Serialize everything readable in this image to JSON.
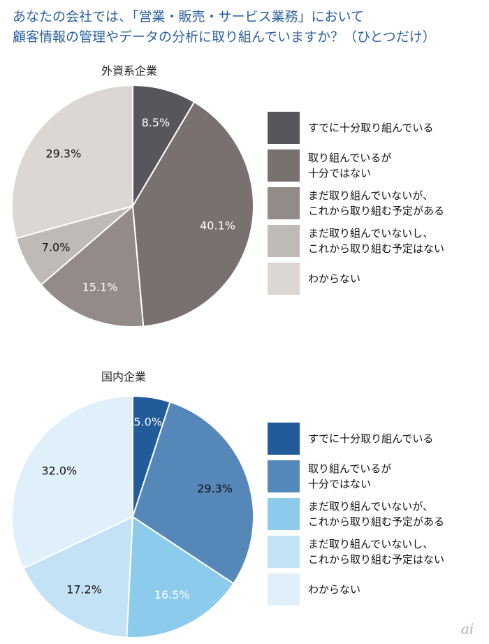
{
  "title": {
    "line1": "あなたの会社では、「営業・販売・サービス業務」において",
    "line2": "顧客情報の管理やデータの分析に取り組んでいますか？（ひとつだけ）"
  },
  "chart_data": [
    {
      "type": "pie",
      "title": "外資系企業",
      "categories": [
        "すでに十分取り組んでいる",
        "取り組んでいるが\n十分ではない",
        "まだ取り組んでいないが、\nこれから取り組む予定がある",
        "まだ取り組んでいないし、\nこれから取り組む予定はない",
        "わからない"
      ],
      "values": [
        8.5,
        40.1,
        15.1,
        7.0,
        29.3
      ],
      "labels": [
        "8.5%",
        "40.1%",
        "15.1%",
        "7.0%",
        "29.3%"
      ],
      "colors": [
        "#58565b",
        "#787170",
        "#938b87",
        "#bfb9b7",
        "#ddd7d3"
      ],
      "label_colors": [
        "#ffffff",
        "#ffffff",
        "#ffffff",
        "#111111",
        "#111111"
      ],
      "legend_placement": "right"
    },
    {
      "type": "pie",
      "title": "国内企業",
      "categories": [
        "すでに十分取り組んでいる",
        "取り組んでいるが\n十分ではない",
        "まだ取り組んでいないが、\nこれから取り組む予定がある",
        "まだ取り組んでいないし、\nこれから取り組む予定はない",
        "わからない"
      ],
      "values": [
        5.0,
        29.3,
        16.5,
        17.2,
        32.0
      ],
      "labels": [
        "5.0%",
        "29.3%",
        "16.5%",
        "17.2%",
        "32.0%"
      ],
      "colors": [
        "#215b99",
        "#5587b8",
        "#8ccbec",
        "#c4e2f6",
        "#dff0fa"
      ],
      "label_colors": [
        "#ffffff",
        "#111111",
        "#ffffff",
        "#111111",
        "#111111"
      ],
      "legend_placement": "right"
    }
  ],
  "watermark": "ai"
}
